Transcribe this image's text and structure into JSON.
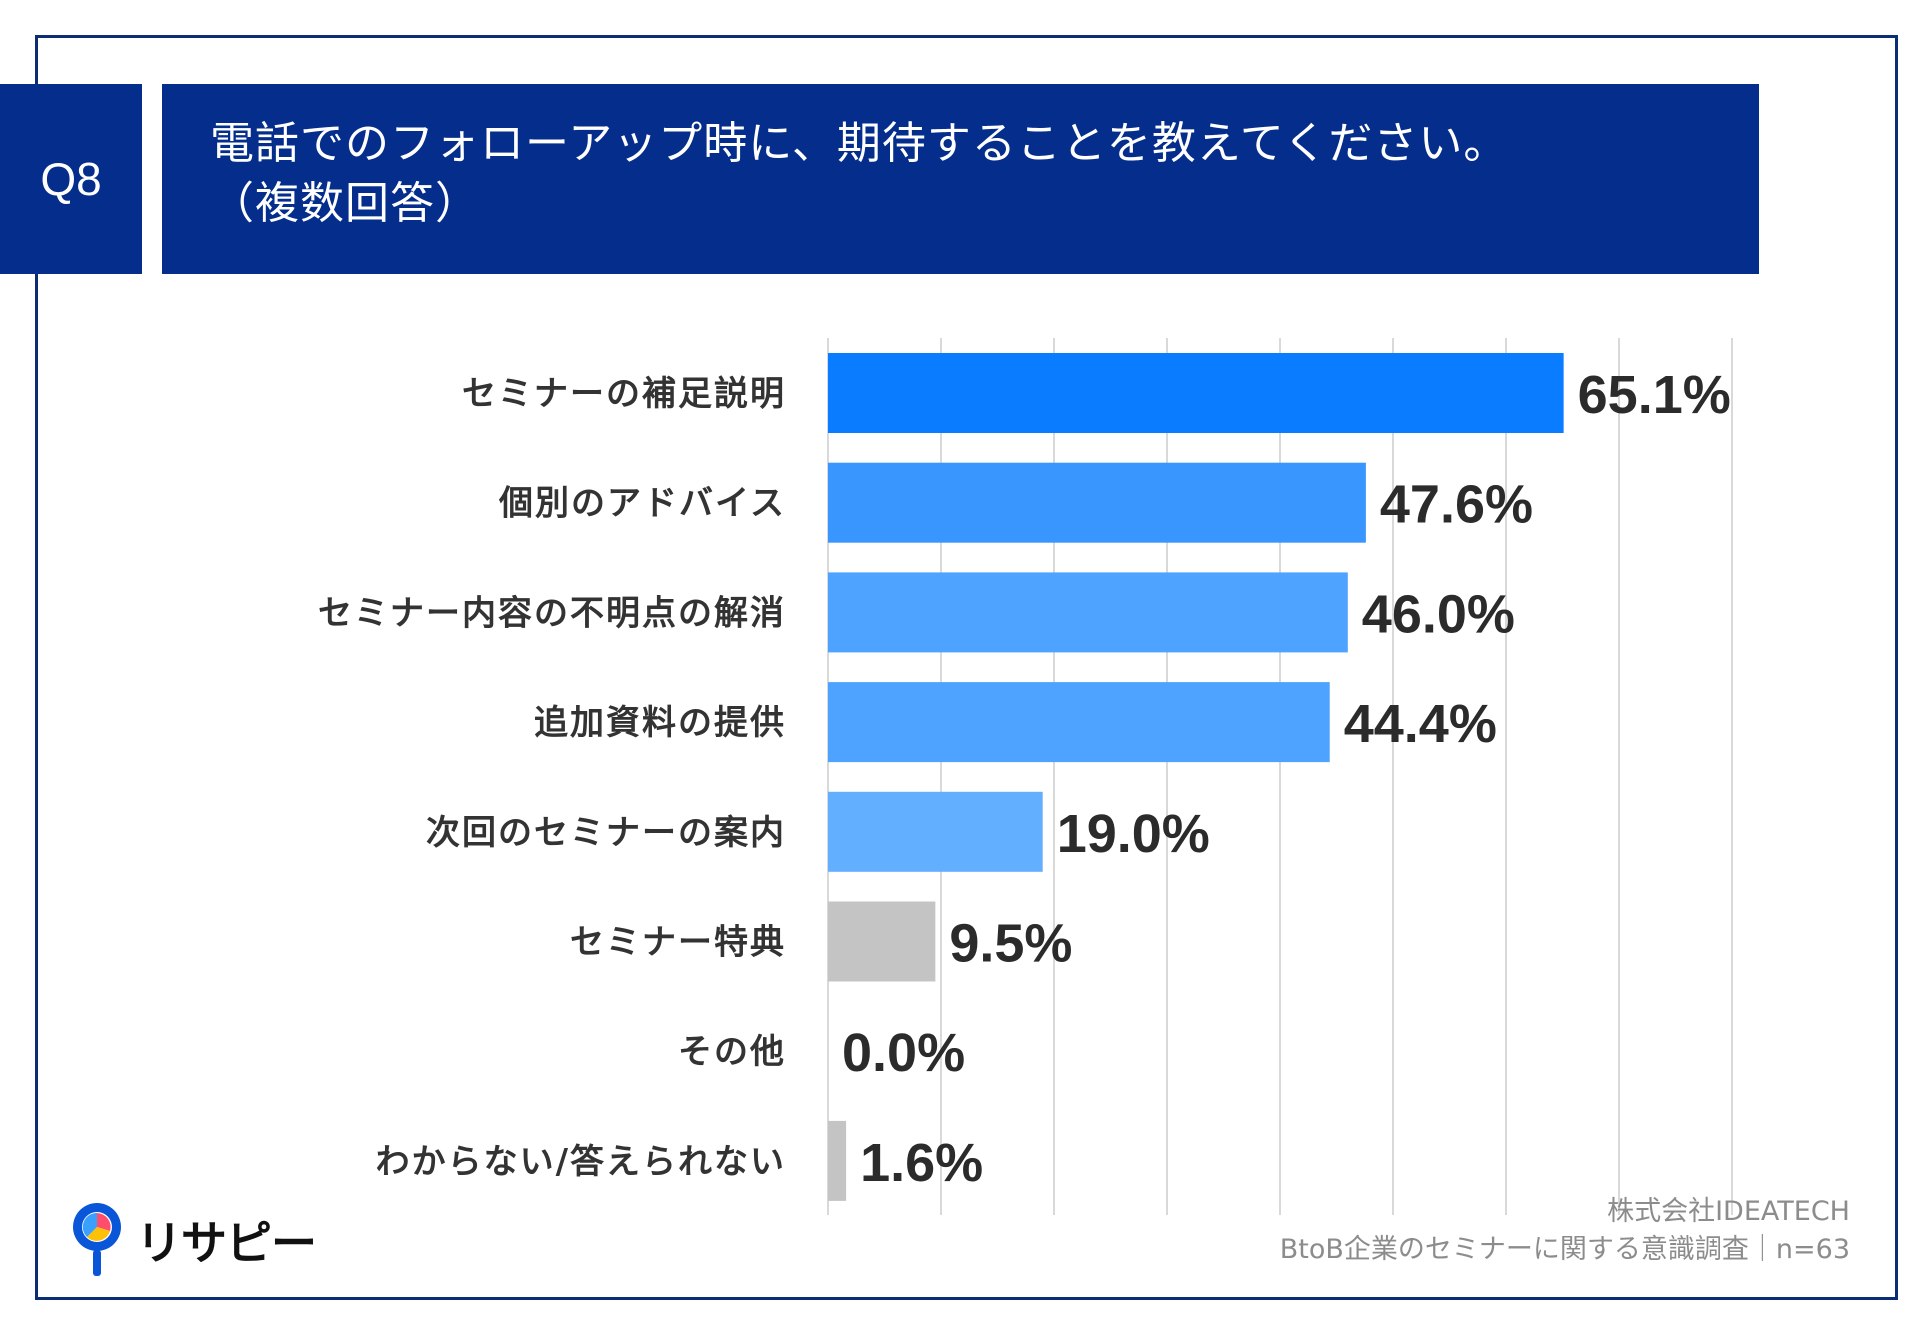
{
  "header": {
    "question_no": "Q8",
    "title_line1": "電話でのフォローアップ時に、期待することを教えてください。",
    "title_line2": "（複数回答）"
  },
  "colors": {
    "header_bg": "#042d8c",
    "border": "#0b2d74",
    "bar_top": "#0a7cff",
    "bar_mid": "#3a96ff",
    "bar_light": "#4da3ff",
    "bar_lighter": "#63afff",
    "bar_gray": "#c4c4c4",
    "label_text": "#333333",
    "value_text": "#2b2b2b",
    "grid": "#d9d9d9"
  },
  "chart_data": {
    "type": "bar",
    "orientation": "horizontal",
    "categories": [
      "セミナーの補足説明",
      "個別のアドバイス",
      "セミナー内容の不明点の解消",
      "追加資料の提供",
      "次回のセミナーの案内",
      "セミナー特典",
      "その他",
      "わからない/答えられない"
    ],
    "values": [
      65.1,
      47.6,
      46.0,
      44.4,
      19.0,
      9.5,
      0.0,
      1.6
    ],
    "value_labels": [
      "65.1%",
      "47.6%",
      "46.0%",
      "44.4%",
      "19.0%",
      "9.5%",
      "0.0%",
      "1.6%"
    ],
    "bar_colors": [
      "#0a7cff",
      "#3a96ff",
      "#4da3ff",
      "#4da3ff",
      "#63afff",
      "#c4c4c4",
      "#c4c4c4",
      "#c4c4c4"
    ],
    "xlim": [
      0,
      80
    ],
    "grid_step": 10,
    "title": "電話でのフォローアップ時に、期待することを教えてください。（複数回答）",
    "xlabel": "",
    "ylabel": ""
  },
  "footer": {
    "logo_text": "リサピー",
    "company": "株式会社IDEATECH",
    "survey": "BtoB企業のセミナーに関する意識調査｜n=63"
  }
}
